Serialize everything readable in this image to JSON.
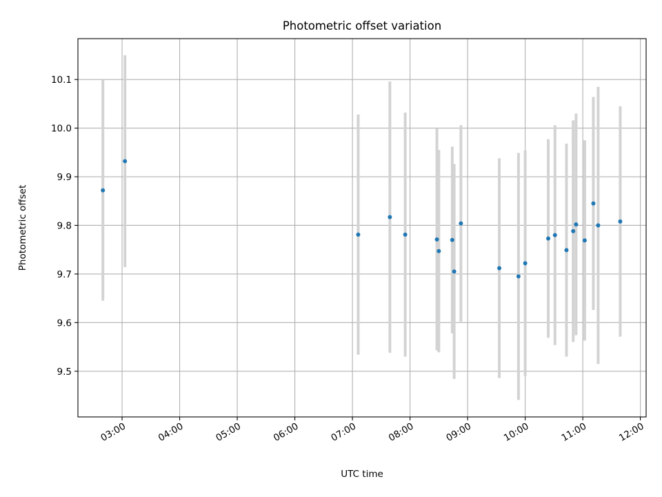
{
  "chart_data": {
    "type": "scatter",
    "title": "Photometric offset variation",
    "xlabel": "UTC time",
    "ylabel": "Photometric offset",
    "x_ticks": [
      "03:00",
      "04:00",
      "05:00",
      "06:00",
      "07:00",
      "08:00",
      "09:00",
      "10:00",
      "11:00",
      "12:00"
    ],
    "y_ticks": [
      "9.5",
      "9.6",
      "9.7",
      "9.8",
      "9.9",
      "10.0",
      "10.1"
    ],
    "xlim": [
      "02:14",
      "12:06"
    ],
    "ylim": [
      9.406,
      10.184
    ],
    "grid": true,
    "point_color": "#1f77b4",
    "errorbar_color": "#d3d3d3",
    "series": [
      {
        "points": [
          {
            "time": "02:40",
            "y": 9.872,
            "err": 0.227
          },
          {
            "time": "03:03",
            "y": 9.932,
            "err": 0.218
          },
          {
            "time": "07:06",
            "y": 9.781,
            "err": 0.247
          },
          {
            "time": "07:39",
            "y": 9.817,
            "err": 0.279
          },
          {
            "time": "07:55",
            "y": 9.781,
            "err": 0.251
          },
          {
            "time": "08:28",
            "y": 9.771,
            "err": 0.228
          },
          {
            "time": "08:30",
            "y": 9.747,
            "err": 0.208
          },
          {
            "time": "08:44",
            "y": 9.77,
            "err": 0.192
          },
          {
            "time": "08:46",
            "y": 9.705,
            "err": 0.221
          },
          {
            "time": "08:53",
            "y": 9.804,
            "err": 0.202
          },
          {
            "time": "09:33",
            "y": 9.712,
            "err": 0.226
          },
          {
            "time": "09:53",
            "y": 9.695,
            "err": 0.254
          },
          {
            "time": "10:00",
            "y": 9.722,
            "err": 0.232
          },
          {
            "time": "10:24",
            "y": 9.773,
            "err": 0.204
          },
          {
            "time": "10:31",
            "y": 9.78,
            "err": 0.226
          },
          {
            "time": "10:43",
            "y": 9.749,
            "err": 0.219
          },
          {
            "time": "10:50",
            "y": 9.788,
            "err": 0.228
          },
          {
            "time": "10:53",
            "y": 9.802,
            "err": 0.228
          },
          {
            "time": "11:02",
            "y": 9.769,
            "err": 0.206
          },
          {
            "time": "11:11",
            "y": 9.845,
            "err": 0.219
          },
          {
            "time": "11:16",
            "y": 9.8,
            "err": 0.285
          },
          {
            "time": "11:39",
            "y": 9.808,
            "err": 0.237
          }
        ]
      }
    ]
  }
}
